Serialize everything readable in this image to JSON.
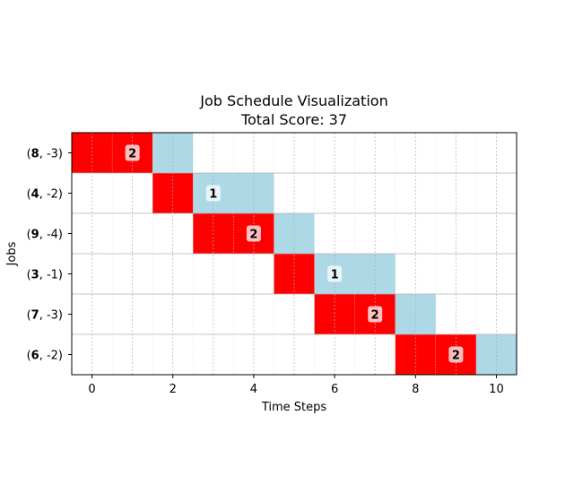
{
  "chart_data": {
    "type": "gantt",
    "title": "Job Schedule Visualization",
    "subtitle": "Total Score: 37",
    "xlabel": "Time Steps",
    "ylabel": "Jobs",
    "xlim": [
      -0.5,
      10.5
    ],
    "x_ticks": [
      0,
      2,
      4,
      6,
      8,
      10
    ],
    "grid": true,
    "colors": {
      "processing": "#ff0000",
      "waiting": "#add8e6"
    },
    "jobs": [
      {
        "label_bold": "8",
        "label_rest": ", -3)",
        "processing": [
          0,
          1
        ],
        "waiting": [
          2
        ],
        "score": "2"
      },
      {
        "label_bold": "4",
        "label_rest": ", -2)",
        "processing": [
          2
        ],
        "waiting": [
          3,
          4
        ],
        "score": "1"
      },
      {
        "label_bold": "9",
        "label_rest": ", -4)",
        "processing": [
          3,
          4
        ],
        "waiting": [
          5
        ],
        "score": "2"
      },
      {
        "label_bold": "3",
        "label_rest": ", -1)",
        "processing": [
          5
        ],
        "waiting": [
          6,
          7
        ],
        "score": "1"
      },
      {
        "label_bold": "7",
        "label_rest": ", -3)",
        "processing": [
          6,
          7
        ],
        "waiting": [
          8
        ],
        "score": "2"
      },
      {
        "label_bold": "6",
        "label_rest": ", -2)",
        "processing": [
          8,
          9
        ],
        "waiting": [
          10
        ],
        "score": "2"
      }
    ]
  }
}
